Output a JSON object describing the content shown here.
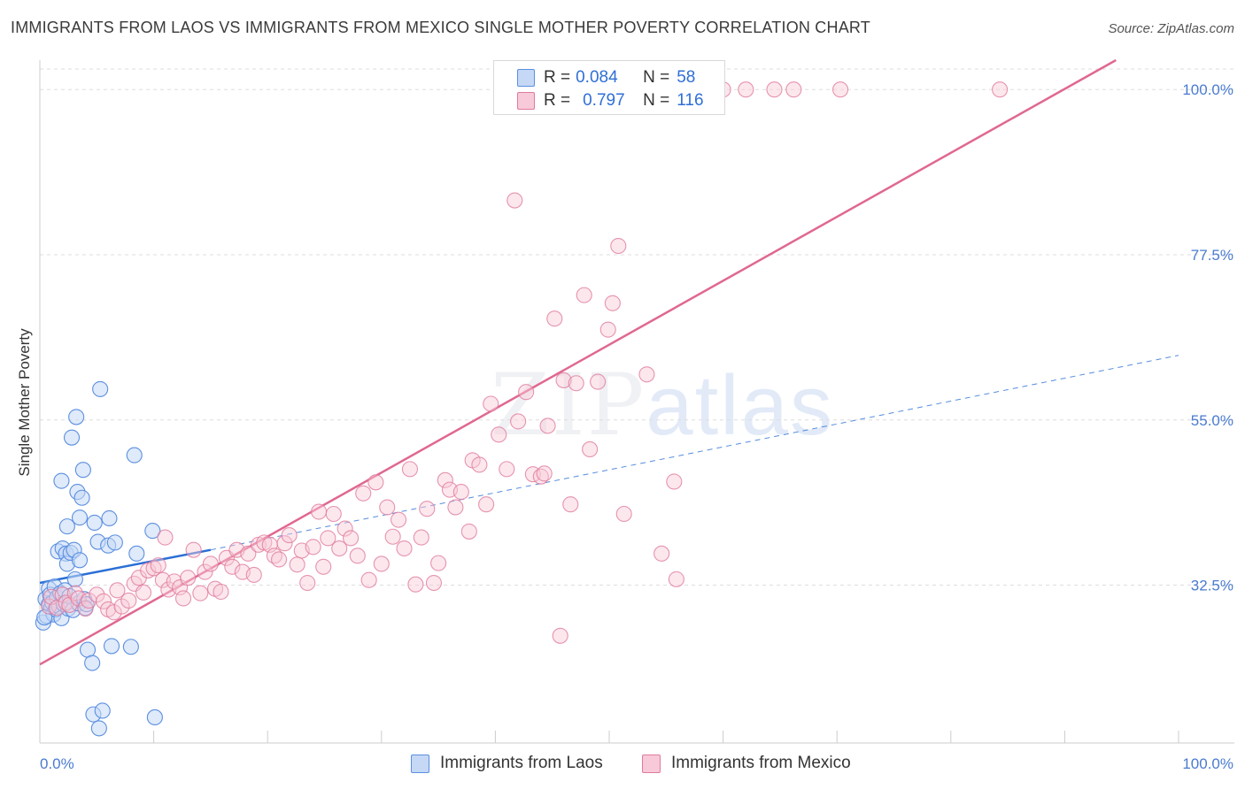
{
  "title": "IMMIGRANTS FROM LAOS VS IMMIGRANTS FROM MEXICO SINGLE MOTHER POVERTY CORRELATION CHART",
  "source": "Source: ZipAtlas.com",
  "watermark": {
    "part1": "ZIP",
    "part2": "atlas"
  },
  "colors": {
    "laos": "#5b8fe0",
    "laos_fill": "#c5d8f5",
    "mexico": "#e07a9c",
    "mexico_fill": "#f8c9d8",
    "axis_text": "#4a7bd0",
    "laos_line": "#2a6fd6",
    "mexico_line": "#e06890"
  },
  "legend_top": {
    "laos": {
      "r_label": "R =",
      "r_value": "0.084",
      "n_label": "N =",
      "n_value": "58"
    },
    "mexico": {
      "r_label": "R =",
      "r_value": "0.797",
      "n_label": "N =",
      "n_value": "116"
    }
  },
  "legend_bottom": {
    "laos": "Immigrants from Laos",
    "mexico": "Immigrants from Mexico"
  },
  "chart_data": {
    "type": "scatter",
    "ylabel": "Single Mother Poverty",
    "xlim": [
      0,
      100
    ],
    "ylim": [
      11,
      104
    ],
    "x_tick_labels": [
      "0.0%",
      "100.0%"
    ],
    "y_ticks": [
      32.5,
      55.0,
      77.5,
      100.0
    ],
    "y_tick_labels": [
      "32.5%",
      "55.0%",
      "77.5%",
      "100.0%"
    ],
    "grid": true,
    "series": [
      {
        "name": "Immigrants from Laos",
        "R": 0.084,
        "N": 58,
        "trend": {
          "x0": 0,
          "y0": 32.8,
          "x1": 15,
          "y1": 37.3
        },
        "trend_extension": {
          "x0": 15,
          "y0": 37.3,
          "x1": 100,
          "y1": 63.8
        },
        "points": [
          [
            0.3,
            27.4
          ],
          [
            0.5,
            30.6
          ],
          [
            0.6,
            28.3
          ],
          [
            0.8,
            29.9
          ],
          [
            0.8,
            32.0
          ],
          [
            0.9,
            31.2
          ],
          [
            1.0,
            29.5
          ],
          [
            1.1,
            30.1
          ],
          [
            1.2,
            28.5
          ],
          [
            1.3,
            32.3
          ],
          [
            1.4,
            29.2
          ],
          [
            1.5,
            30.8
          ],
          [
            1.6,
            37.1
          ],
          [
            1.7,
            29.6
          ],
          [
            1.8,
            31.4
          ],
          [
            1.9,
            28.0
          ],
          [
            1.9,
            46.7
          ],
          [
            2.0,
            37.5
          ],
          [
            2.1,
            29.9
          ],
          [
            2.2,
            31.8
          ],
          [
            2.3,
            36.8
          ],
          [
            2.4,
            35.4
          ],
          [
            2.4,
            40.5
          ],
          [
            2.5,
            29.3
          ],
          [
            2.6,
            31.0
          ],
          [
            2.7,
            36.9
          ],
          [
            2.8,
            52.6
          ],
          [
            2.9,
            29.1
          ],
          [
            3.0,
            37.3
          ],
          [
            3.1,
            33.3
          ],
          [
            3.2,
            55.4
          ],
          [
            3.3,
            45.2
          ],
          [
            3.4,
            30.0
          ],
          [
            3.5,
            41.7
          ],
          [
            3.5,
            35.9
          ],
          [
            3.7,
            44.4
          ],
          [
            3.8,
            48.2
          ],
          [
            3.9,
            30.6
          ],
          [
            4.0,
            29.4
          ],
          [
            4.1,
            29.9
          ],
          [
            4.2,
            23.7
          ],
          [
            4.6,
            21.9
          ],
          [
            4.7,
            14.9
          ],
          [
            4.8,
            41.0
          ],
          [
            5.1,
            38.4
          ],
          [
            5.2,
            13.0
          ],
          [
            5.3,
            59.2
          ],
          [
            5.5,
            15.4
          ],
          [
            6.0,
            37.9
          ],
          [
            6.1,
            41.6
          ],
          [
            6.3,
            24.2
          ],
          [
            6.6,
            38.3
          ],
          [
            8.0,
            24.1
          ],
          [
            8.3,
            50.2
          ],
          [
            8.5,
            36.8
          ],
          [
            9.9,
            39.9
          ],
          [
            10.1,
            14.5
          ],
          [
            0.4,
            28.1
          ]
        ]
      },
      {
        "name": "Immigrants from Mexico",
        "R": 0.797,
        "N": 116,
        "trend": {
          "x0": 0,
          "y0": 21.7,
          "x1": 94.5,
          "y1": 104.0
        },
        "points": [
          [
            0.8,
            29.6
          ],
          [
            1.0,
            30.9
          ],
          [
            1.5,
            29.4
          ],
          [
            2.0,
            31.2
          ],
          [
            2.3,
            30.1
          ],
          [
            2.6,
            29.8
          ],
          [
            3.1,
            31.4
          ],
          [
            3.4,
            30.7
          ],
          [
            4.0,
            29.3
          ],
          [
            4.3,
            30.4
          ],
          [
            5.0,
            31.2
          ],
          [
            5.6,
            30.3
          ],
          [
            6.0,
            29.2
          ],
          [
            6.5,
            28.8
          ],
          [
            6.8,
            31.8
          ],
          [
            7.2,
            29.6
          ],
          [
            7.8,
            30.4
          ],
          [
            8.3,
            32.7
          ],
          [
            8.7,
            33.5
          ],
          [
            9.1,
            31.5
          ],
          [
            9.5,
            34.5
          ],
          [
            10.0,
            34.8
          ],
          [
            10.4,
            35.2
          ],
          [
            10.8,
            33.2
          ],
          [
            11.0,
            39.0
          ],
          [
            11.3,
            31.9
          ],
          [
            11.8,
            33.0
          ],
          [
            12.3,
            32.2
          ],
          [
            12.6,
            30.7
          ],
          [
            13.0,
            33.5
          ],
          [
            13.5,
            37.3
          ],
          [
            14.1,
            31.4
          ],
          [
            14.5,
            34.3
          ],
          [
            15.0,
            35.4
          ],
          [
            15.4,
            32.0
          ],
          [
            15.9,
            31.6
          ],
          [
            16.4,
            36.2
          ],
          [
            16.9,
            35.0
          ],
          [
            17.3,
            37.3
          ],
          [
            17.8,
            34.3
          ],
          [
            18.3,
            36.8
          ],
          [
            18.8,
            33.9
          ],
          [
            19.2,
            38.0
          ],
          [
            19.7,
            38.3
          ],
          [
            20.2,
            38.0
          ],
          [
            20.6,
            36.5
          ],
          [
            21.0,
            36.0
          ],
          [
            21.5,
            38.2
          ],
          [
            21.9,
            39.3
          ],
          [
            22.6,
            35.3
          ],
          [
            23.0,
            37.2
          ],
          [
            23.5,
            32.8
          ],
          [
            24.0,
            37.7
          ],
          [
            24.5,
            42.5
          ],
          [
            24.9,
            35.0
          ],
          [
            25.3,
            38.9
          ],
          [
            25.8,
            42.2
          ],
          [
            26.3,
            37.5
          ],
          [
            26.8,
            40.2
          ],
          [
            27.3,
            38.9
          ],
          [
            27.9,
            36.5
          ],
          [
            28.4,
            45.0
          ],
          [
            28.9,
            33.2
          ],
          [
            29.5,
            46.5
          ],
          [
            30.0,
            35.4
          ],
          [
            30.5,
            43.1
          ],
          [
            31.0,
            39.1
          ],
          [
            31.5,
            41.4
          ],
          [
            32.0,
            37.5
          ],
          [
            32.5,
            48.3
          ],
          [
            33.0,
            32.6
          ],
          [
            33.5,
            39.0
          ],
          [
            34.0,
            42.9
          ],
          [
            34.6,
            32.8
          ],
          [
            35.0,
            35.5
          ],
          [
            35.6,
            46.8
          ],
          [
            36.0,
            45.5
          ],
          [
            36.5,
            43.1
          ],
          [
            37.0,
            45.2
          ],
          [
            37.7,
            39.8
          ],
          [
            38.0,
            49.5
          ],
          [
            38.6,
            48.9
          ],
          [
            39.2,
            43.5
          ],
          [
            39.6,
            57.2
          ],
          [
            40.3,
            53.0
          ],
          [
            41.0,
            48.3
          ],
          [
            41.7,
            84.9
          ],
          [
            42.0,
            54.8
          ],
          [
            42.7,
            58.8
          ],
          [
            43.3,
            47.6
          ],
          [
            44.0,
            47.3
          ],
          [
            44.3,
            47.7
          ],
          [
            44.6,
            54.2
          ],
          [
            45.2,
            68.8
          ],
          [
            45.7,
            25.6
          ],
          [
            46.0,
            60.4
          ],
          [
            46.6,
            43.5
          ],
          [
            47.1,
            60.0
          ],
          [
            47.8,
            72.0
          ],
          [
            48.3,
            51.0
          ],
          [
            49.0,
            60.2
          ],
          [
            49.9,
            67.3
          ],
          [
            50.3,
            70.9
          ],
          [
            50.8,
            78.7
          ],
          [
            51.3,
            42.2
          ],
          [
            53.3,
            61.2
          ],
          [
            54.6,
            36.8
          ],
          [
            55.7,
            46.6
          ],
          [
            55.9,
            33.3
          ],
          [
            57.8,
            100.0
          ],
          [
            60.0,
            100.0
          ],
          [
            62.0,
            100.0
          ],
          [
            64.5,
            100.0
          ],
          [
            66.2,
            100.0
          ],
          [
            70.3,
            100.0
          ],
          [
            84.3,
            100.0
          ]
        ]
      }
    ]
  }
}
